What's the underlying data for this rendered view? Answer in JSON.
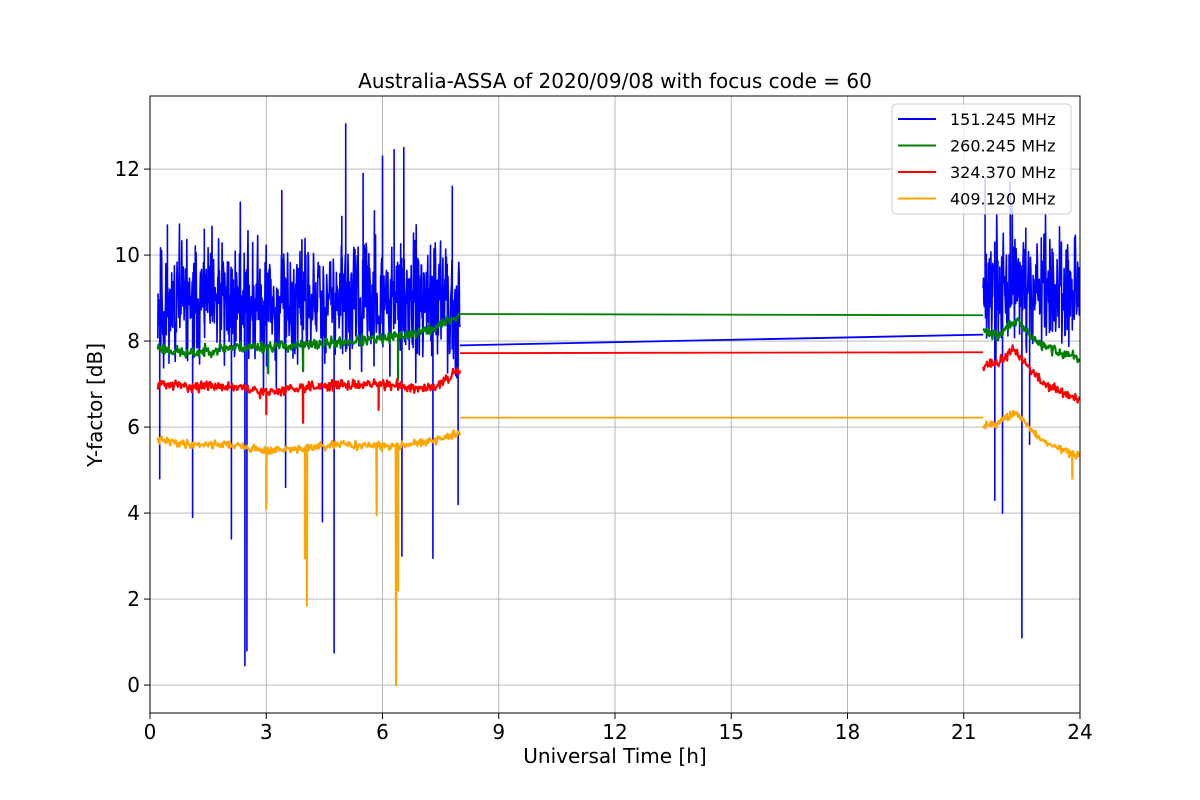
{
  "chart_data": {
    "type": "line",
    "title": "Australia-ASSA of 2020/09/08 with focus code = 60",
    "xlabel": "Universal Time [h]",
    "ylabel": "Y-factor [dB]",
    "xlim": [
      0,
      24
    ],
    "ylim": [
      -0.65,
      13.7
    ],
    "xticks": [
      0,
      3,
      6,
      9,
      12,
      15,
      18,
      21,
      24
    ],
    "yticks": [
      0,
      2,
      4,
      6,
      8,
      10,
      12
    ],
    "grid": true,
    "legend_position": "top-right",
    "series": [
      {
        "name": "151.245 MHz",
        "color": "#0000ff",
        "segments": [
          {
            "x_start": 0.2,
            "x_end": 8.0,
            "baseline": 8.9,
            "noise": 1.15,
            "step": 0.01,
            "seed": 11,
            "spikes": [
              [
                0.25,
                4.8
              ],
              [
                0.45,
                10.7
              ],
              [
                1.1,
                3.9
              ],
              [
                1.4,
                10.6
              ],
              [
                2.1,
                3.4
              ],
              [
                2.45,
                0.45
              ],
              [
                2.5,
                0.8
              ],
              [
                3.4,
                11.5
              ],
              [
                3.5,
                4.6
              ],
              [
                4.45,
                3.8
              ],
              [
                4.75,
                0.75
              ],
              [
                4.95,
                10.9
              ],
              [
                5.05,
                13.05
              ],
              [
                5.5,
                11.9
              ],
              [
                6.0,
                12.3
              ],
              [
                6.3,
                12.45
              ],
              [
                6.5,
                3.0
              ],
              [
                6.55,
                12.5
              ],
              [
                7.3,
                2.95
              ],
              [
                7.8,
                11.6
              ],
              [
                7.95,
                4.2
              ]
            ]
          },
          {
            "x_start": 21.5,
            "x_end": 24.0,
            "baseline": 9.2,
            "noise": 1.05,
            "step": 0.01,
            "seed": 17,
            "spikes": [
              [
                21.55,
                11.8
              ],
              [
                21.8,
                4.3
              ],
              [
                22.0,
                4.0
              ],
              [
                22.2,
                11.7
              ],
              [
                22.5,
                1.1
              ],
              [
                22.7,
                5.6
              ]
            ]
          }
        ],
        "bridge": [
          [
            8.0,
            7.9
          ],
          [
            21.5,
            8.15
          ]
        ]
      },
      {
        "name": "260.245 MHz",
        "color": "#008000",
        "segments": [
          {
            "x_start": 0.2,
            "x_end": 8.0,
            "baseline": [
              [
                0.2,
                7.85
              ],
              [
                1.0,
                7.7
              ],
              [
                2.0,
                7.85
              ],
              [
                4.0,
                7.9
              ],
              [
                6.0,
                8.05
              ],
              [
                7.2,
                8.25
              ],
              [
                8.0,
                8.6
              ]
            ],
            "noise": 0.11,
            "step": 0.02,
            "seed": 23,
            "spikes": [
              [
                3.05,
                7.25
              ],
              [
                3.95,
                7.3
              ],
              [
                6.4,
                7.1
              ]
            ]
          },
          {
            "x_start": 21.5,
            "x_end": 24.0,
            "baseline": [
              [
                21.5,
                8.25
              ],
              [
                21.9,
                8.1
              ],
              [
                22.3,
                8.5
              ],
              [
                23.0,
                7.9
              ],
              [
                24.0,
                7.6
              ]
            ],
            "noise": 0.1,
            "step": 0.02,
            "seed": 29,
            "spikes": []
          }
        ],
        "bridge": [
          [
            8.0,
            8.63
          ],
          [
            21.5,
            8.6
          ]
        ]
      },
      {
        "name": "324.370 MHz",
        "color": "#ff0000",
        "segments": [
          {
            "x_start": 0.2,
            "x_end": 8.0,
            "baseline": [
              [
                0.2,
                7.0
              ],
              [
                1.0,
                6.95
              ],
              [
                2.0,
                6.95
              ],
              [
                3.0,
                6.8
              ],
              [
                4.0,
                6.95
              ],
              [
                6.0,
                7.0
              ],
              [
                7.2,
                6.9
              ],
              [
                8.0,
                7.3
              ]
            ],
            "noise": 0.1,
            "step": 0.02,
            "seed": 31,
            "spikes": [
              [
                3.0,
                6.3
              ],
              [
                3.95,
                6.1
              ],
              [
                5.9,
                6.4
              ]
            ]
          },
          {
            "x_start": 21.5,
            "x_end": 24.0,
            "baseline": [
              [
                21.5,
                7.45
              ],
              [
                21.9,
                7.5
              ],
              [
                22.3,
                7.8
              ],
              [
                23.0,
                7.05
              ],
              [
                24.0,
                6.6
              ]
            ],
            "noise": 0.1,
            "step": 0.02,
            "seed": 37,
            "spikes": []
          }
        ],
        "bridge": [
          [
            8.0,
            7.72
          ],
          [
            21.5,
            7.74
          ]
        ]
      },
      {
        "name": "409.120 MHz",
        "color": "#ffa500",
        "segments": [
          {
            "x_start": 0.2,
            "x_end": 8.0,
            "baseline": [
              [
                0.2,
                5.7
              ],
              [
                1.0,
                5.6
              ],
              [
                2.0,
                5.6
              ],
              [
                3.0,
                5.45
              ],
              [
                4.0,
                5.5
              ],
              [
                5.0,
                5.6
              ],
              [
                6.0,
                5.55
              ],
              [
                7.2,
                5.65
              ],
              [
                8.0,
                5.85
              ]
            ],
            "noise": 0.08,
            "step": 0.02,
            "seed": 41,
            "spikes": [
              [
                3.0,
                4.1
              ],
              [
                4.0,
                2.95
              ],
              [
                4.05,
                1.85
              ],
              [
                5.85,
                3.95
              ],
              [
                6.35,
                0.0
              ],
              [
                6.4,
                2.2
              ]
            ]
          },
          {
            "x_start": 21.5,
            "x_end": 24.0,
            "baseline": [
              [
                21.5,
                6.05
              ],
              [
                21.9,
                6.1
              ],
              [
                22.3,
                6.35
              ],
              [
                23.0,
                5.7
              ],
              [
                24.0,
                5.3
              ]
            ],
            "noise": 0.08,
            "step": 0.02,
            "seed": 43,
            "spikes": [
              [
                23.8,
                4.8
              ]
            ]
          }
        ],
        "bridge": [
          [
            8.0,
            6.22
          ],
          [
            21.5,
            6.22
          ]
        ]
      }
    ]
  }
}
